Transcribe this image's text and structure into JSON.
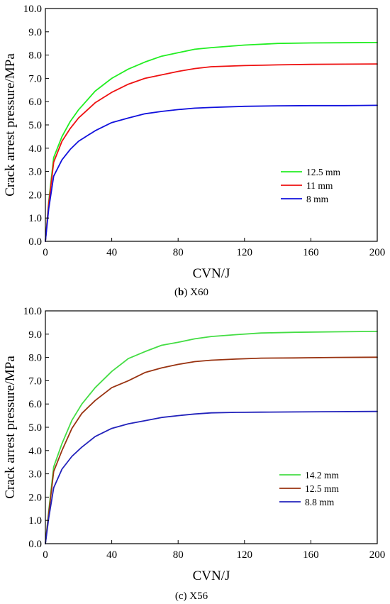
{
  "chart_data": [
    {
      "type": "line",
      "caption_letter": "b",
      "caption_rest": " X60",
      "xlabel": "CVN/J",
      "ylabel": "Crack arrest pressure/MPa",
      "xlim": [
        0,
        200
      ],
      "ylim": [
        0,
        10
      ],
      "x_ticks": [
        0,
        40,
        80,
        120,
        160,
        200
      ],
      "y_ticks": [
        "0.0",
        "1.0",
        "2.0",
        "3.0",
        "4.0",
        "5.0",
        "6.0",
        "7.0",
        "8.0",
        "9.0",
        "10.0"
      ],
      "grid": false,
      "legend_position": "lower-right",
      "series": [
        {
          "name": "12.5 mm",
          "color": "#22ee22",
          "x": [
            0,
            2,
            5,
            10,
            15,
            20,
            30,
            40,
            50,
            60,
            70,
            80,
            90,
            100,
            120,
            140,
            160,
            180,
            200
          ],
          "y": [
            0,
            1.7,
            3.6,
            4.5,
            5.15,
            5.65,
            6.45,
            7.0,
            7.4,
            7.7,
            7.95,
            8.1,
            8.25,
            8.32,
            8.43,
            8.5,
            8.52,
            8.53,
            8.54
          ]
        },
        {
          "name": "11 mm",
          "color": "#ee1111",
          "x": [
            0,
            2,
            5,
            10,
            15,
            20,
            30,
            40,
            50,
            60,
            70,
            80,
            90,
            100,
            120,
            140,
            160,
            180,
            200
          ],
          "y": [
            0,
            1.6,
            3.4,
            4.3,
            4.85,
            5.3,
            5.95,
            6.4,
            6.75,
            7.0,
            7.15,
            7.3,
            7.42,
            7.5,
            7.55,
            7.58,
            7.6,
            7.61,
            7.62
          ]
        },
        {
          "name": "8 mm",
          "color": "#1111dd",
          "x": [
            0,
            2,
            5,
            10,
            15,
            20,
            30,
            40,
            50,
            60,
            70,
            80,
            90,
            100,
            120,
            140,
            160,
            180,
            200
          ],
          "y": [
            0,
            1.4,
            2.8,
            3.5,
            3.95,
            4.3,
            4.75,
            5.1,
            5.3,
            5.48,
            5.58,
            5.66,
            5.72,
            5.75,
            5.8,
            5.82,
            5.83,
            5.83,
            5.84
          ]
        }
      ]
    },
    {
      "type": "line",
      "caption_letter": "",
      "caption_rest": "(c) X56",
      "xlabel": "CVN/J",
      "ylabel": "Crack arrest pressure/MPa",
      "xlim": [
        0,
        200
      ],
      "ylim": [
        0,
        10
      ],
      "x_ticks": [
        0,
        40,
        80,
        120,
        160,
        200
      ],
      "y_ticks": [
        "0.0",
        "1.0",
        "2.0",
        "3.0",
        "4.0",
        "5.0",
        "6.0",
        "7.0",
        "8.0",
        "9.0",
        "10.0"
      ],
      "grid": false,
      "legend_position": "lower-right",
      "series": [
        {
          "name": "14.2 mm",
          "color": "#44dd44",
          "x": [
            0,
            2,
            5,
            10,
            16,
            22,
            30,
            40,
            50,
            60,
            70,
            80,
            90,
            100,
            115,
            130,
            150,
            175,
            200
          ],
          "y": [
            0,
            1.4,
            3.3,
            4.3,
            5.3,
            6.0,
            6.7,
            7.4,
            7.95,
            8.25,
            8.52,
            8.65,
            8.8,
            8.9,
            8.98,
            9.05,
            9.08,
            9.1,
            9.12
          ]
        },
        {
          "name": "12.5 mm",
          "color": "#993311",
          "x": [
            0,
            2,
            5,
            10,
            16,
            22,
            30,
            40,
            50,
            60,
            70,
            80,
            90,
            100,
            115,
            130,
            150,
            175,
            200
          ],
          "y": [
            0,
            1.3,
            3.1,
            4.0,
            4.95,
            5.6,
            6.15,
            6.7,
            7.0,
            7.35,
            7.55,
            7.7,
            7.82,
            7.88,
            7.93,
            7.97,
            7.98,
            8.0,
            8.01
          ]
        },
        {
          "name": "8.8 mm",
          "color": "#2222bb",
          "x": [
            0,
            2,
            5,
            10,
            16,
            22,
            30,
            40,
            50,
            60,
            70,
            80,
            90,
            100,
            115,
            130,
            150,
            175,
            200
          ],
          "y": [
            0,
            1.1,
            2.4,
            3.2,
            3.75,
            4.15,
            4.6,
            4.95,
            5.15,
            5.28,
            5.42,
            5.5,
            5.57,
            5.62,
            5.64,
            5.65,
            5.66,
            5.67,
            5.68
          ]
        }
      ]
    }
  ]
}
